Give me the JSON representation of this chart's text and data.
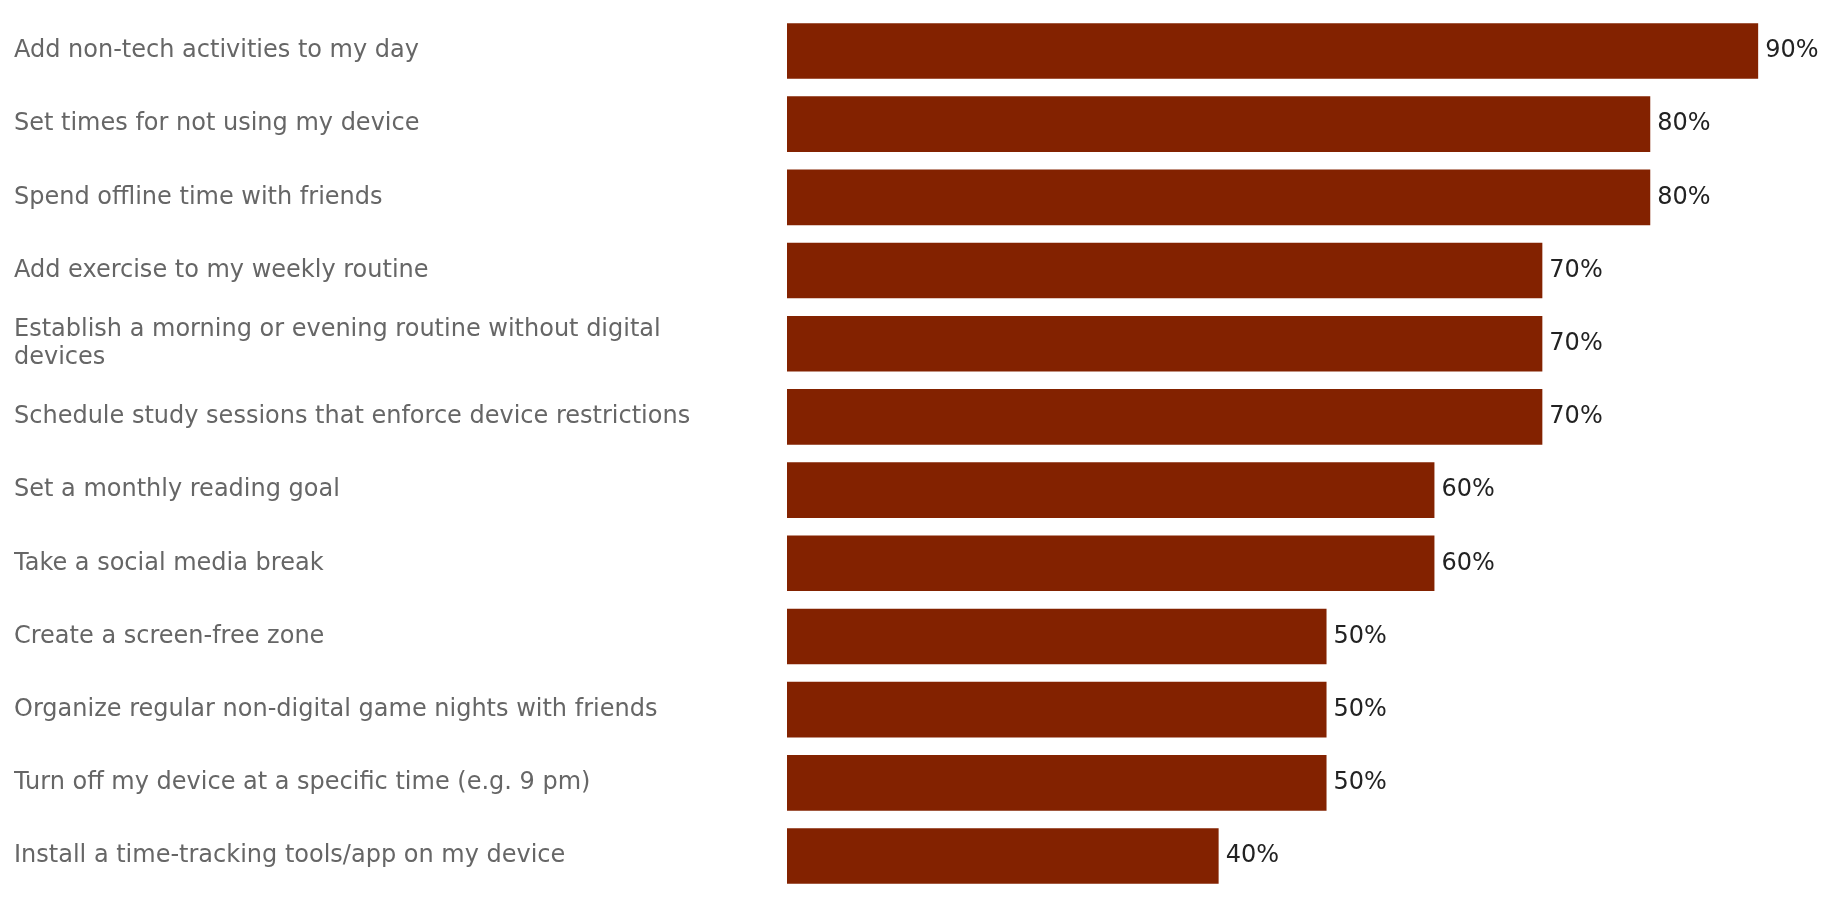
{
  "chart_data": {
    "type": "bar",
    "orientation": "horizontal",
    "categories": [
      "Add non-tech activities to my day",
      "Set times for not using my device",
      "Spend offline time with friends",
      "Add exercise to my weekly routine",
      "Establish a morning or evening routine without digital devices",
      "Schedule study sessions that enforce device restrictions",
      "Set a monthly reading goal",
      "Take a social media break",
      "Create a screen-free zone",
      "Organize regular non-digital game nights with friends",
      "Turn off my device at a specific time (e.g. 9 pm)",
      "Install a time-tracking tools/app on my device"
    ],
    "values": [
      90,
      80,
      80,
      70,
      70,
      70,
      60,
      60,
      50,
      50,
      50,
      40
    ],
    "value_labels": [
      "90%",
      "80%",
      "80%",
      "70%",
      "70%",
      "70%",
      "60%",
      "60%",
      "50%",
      "50%",
      "50%",
      "40%"
    ],
    "color": "#832200"
  }
}
